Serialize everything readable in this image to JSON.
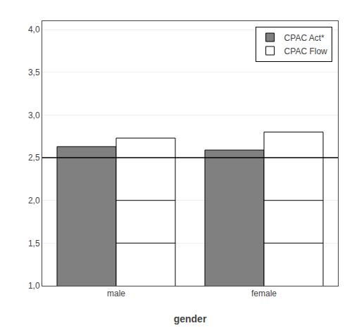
{
  "chart_data": {
    "type": "bar",
    "xlabel": "gender",
    "categories": [
      "male",
      "female"
    ],
    "series": [
      {
        "name": "CPAC Act*",
        "color": "#808080",
        "values": [
          2.63,
          2.59
        ]
      },
      {
        "name": "CPAC Flow",
        "color": "#ffffff",
        "values": [
          2.73,
          2.8
        ],
        "inner_lines": [
          [
            2.0,
            1.5
          ],
          [
            2.0,
            1.5
          ]
        ]
      }
    ],
    "reference_line": 2.5,
    "ylim": [
      1.0,
      4.1
    ],
    "yticks": [
      {
        "value": 1.0,
        "label": "1,0"
      },
      {
        "value": 1.5,
        "label": "1,5"
      },
      {
        "value": 2.0,
        "label": "2,0"
      },
      {
        "value": 2.5,
        "label": "2,5"
      },
      {
        "value": 3.0,
        "label": "3,0"
      },
      {
        "value": 3.5,
        "label": "3,5"
      },
      {
        "value": 4.0,
        "label": "4,0"
      }
    ],
    "grid": true,
    "legend": "upper right"
  }
}
